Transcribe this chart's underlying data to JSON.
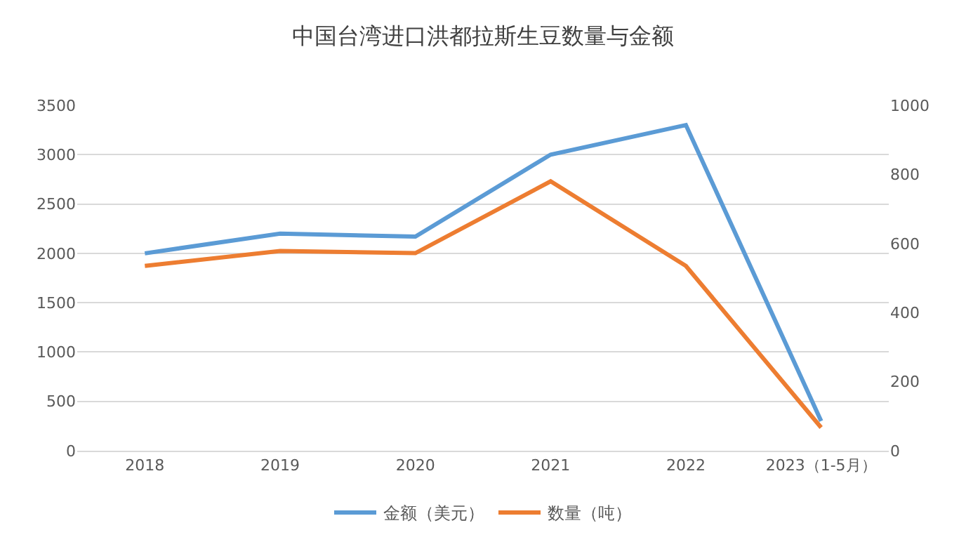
{
  "chart_data": {
    "type": "line",
    "title": "中国台湾进口洪都拉斯生豆数量与金额",
    "categories": [
      "2018",
      "2019",
      "2020",
      "2021",
      "2022",
      "2023（1-5月）"
    ],
    "series": [
      {
        "name": "金额（美元）",
        "color": "#5b9bd5",
        "values": [
          2000,
          2200,
          2170,
          3000,
          3300,
          300
        ]
      },
      {
        "name": "数量（吨）",
        "color": "#ed7d31",
        "axis": "y2",
        "values": [
          535,
          578,
          572,
          780,
          535,
          67
        ]
      }
    ],
    "ylim": [
      0,
      3500
    ],
    "yticks": [
      0,
      500,
      1000,
      1500,
      2000,
      2500,
      3000,
      3500
    ],
    "y2lim": [
      0,
      1000
    ],
    "y2ticks": [
      0,
      200,
      400,
      600,
      800,
      1000
    ],
    "grid": "y",
    "legend": "bottom",
    "marker": "none",
    "line_style": "solid"
  }
}
